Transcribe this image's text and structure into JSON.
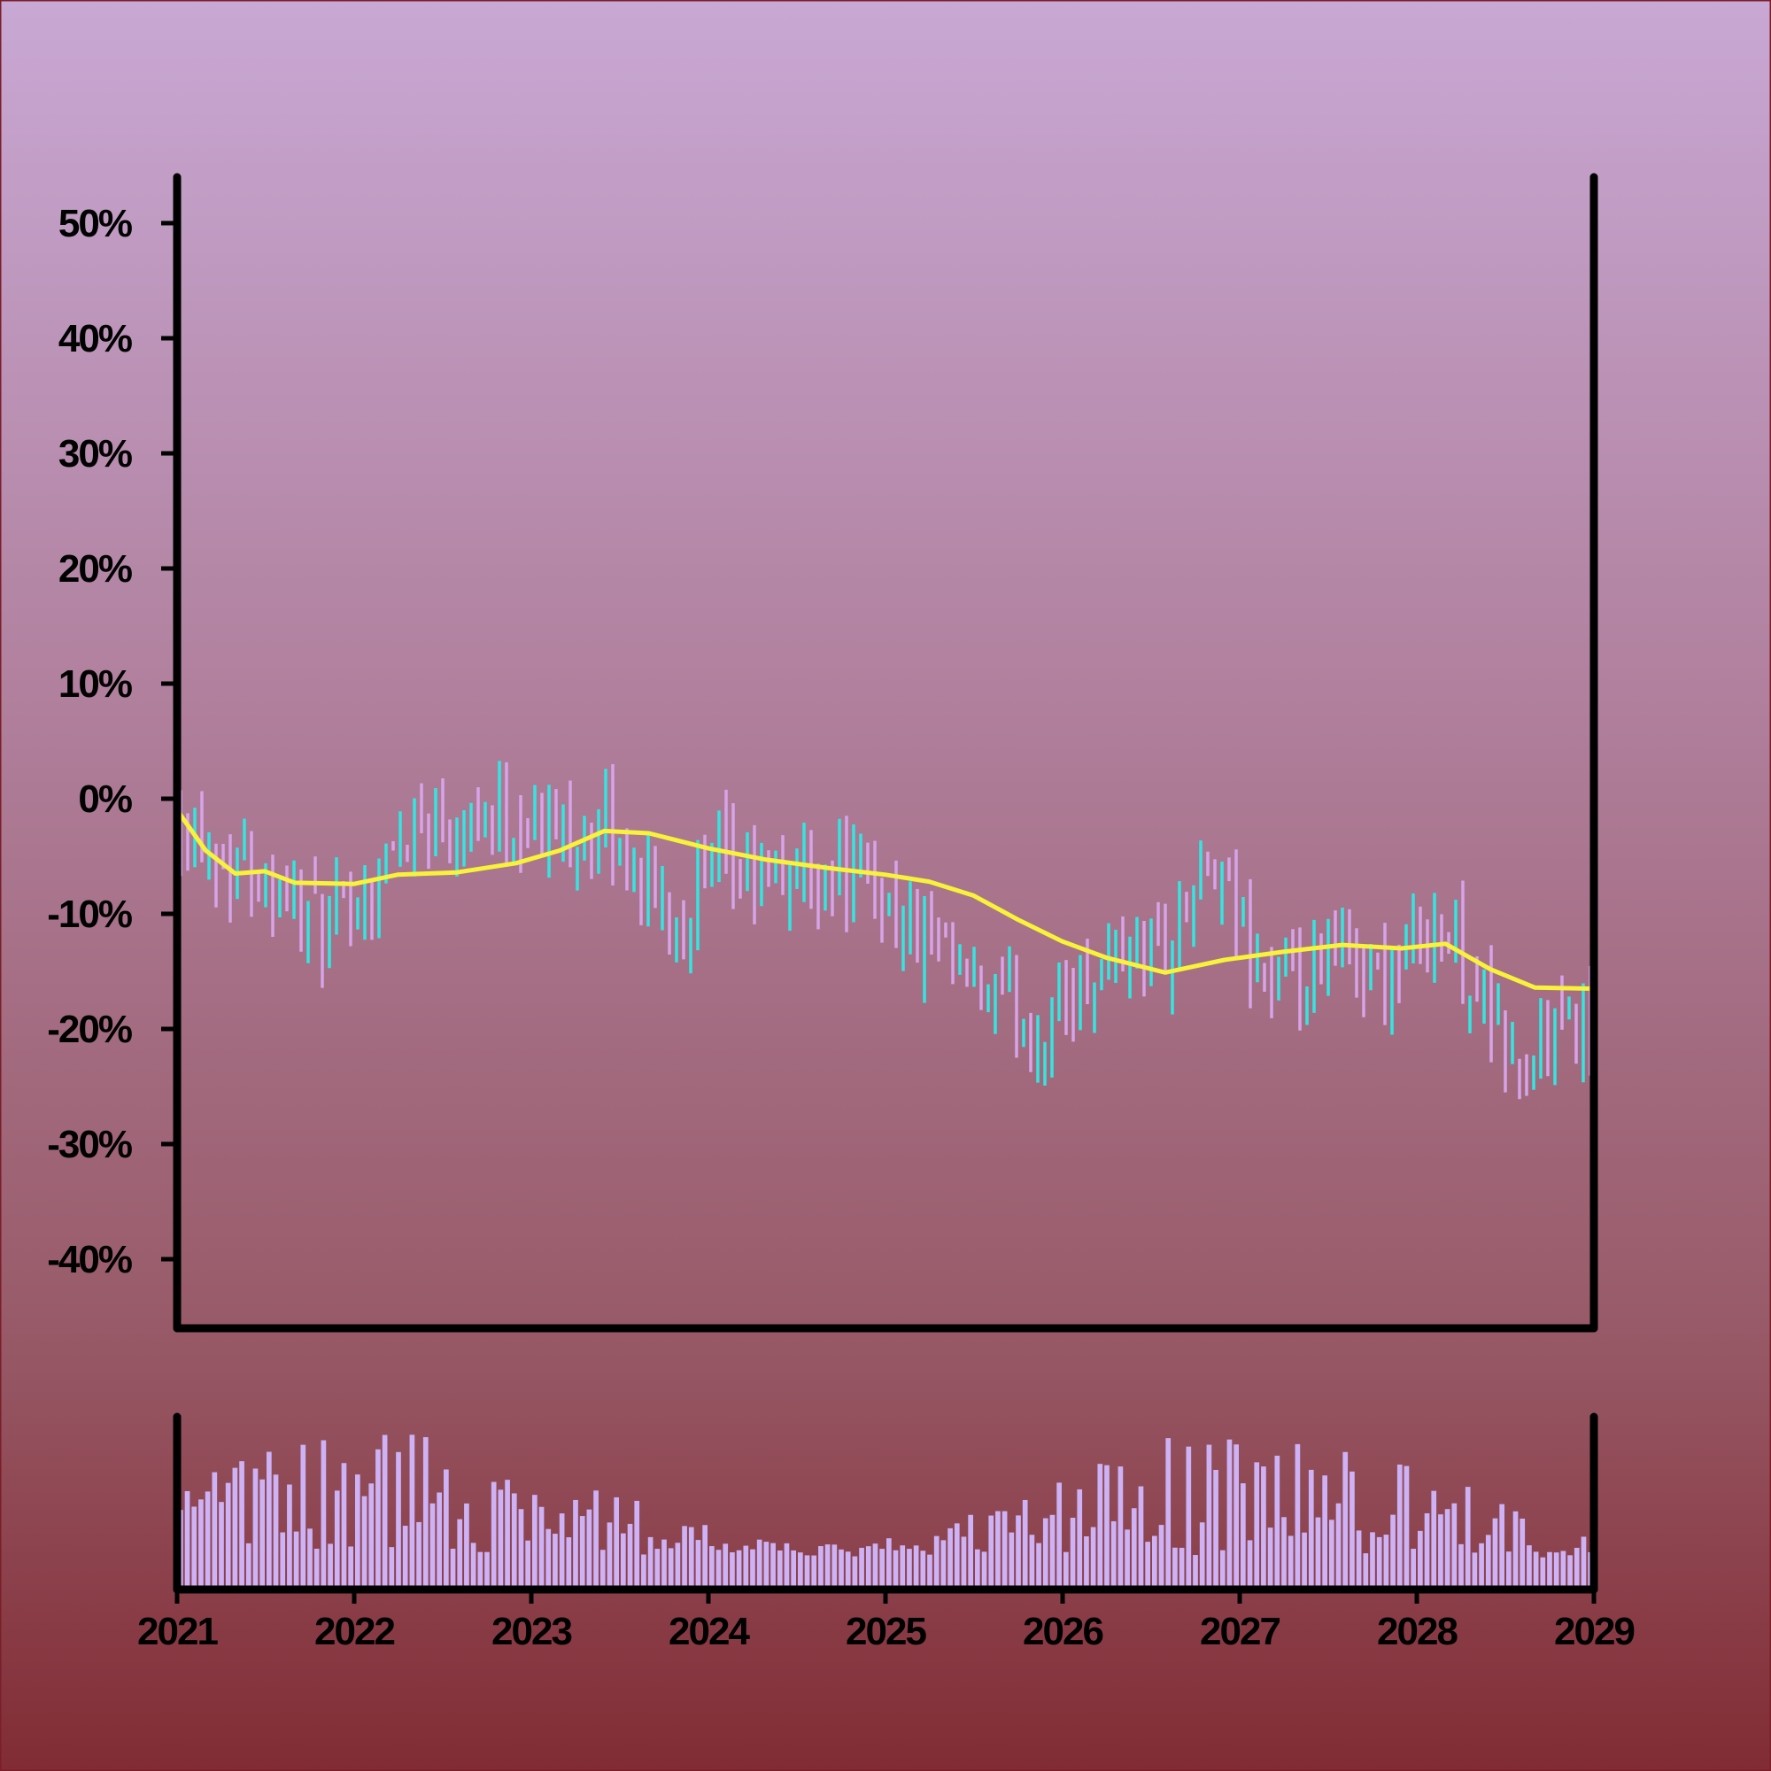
{
  "colors": {
    "bar_up": "#33e6e0",
    "bar_down": "#d6a4e8",
    "moving_average": "#f7f23a",
    "volume": "#cdb2f5",
    "axis": "#000000"
  },
  "chart_data": {
    "type": "ohlc",
    "x_range": [
      "2021-01-01",
      "2029-01-01"
    ],
    "x_tick_labels": [
      "2021",
      "2022",
      "2023",
      "2024",
      "2025",
      "2026",
      "2027",
      "2028",
      "2029"
    ],
    "y_range": [
      -46,
      54
    ],
    "y_unit": "%",
    "y_tick_labels": [
      "50%",
      "40%",
      "30%",
      "20%",
      "10%",
      "0%",
      "-10%",
      "-20%",
      "-30%",
      "-40%"
    ],
    "grid": false,
    "legend": "none",
    "series": [
      {
        "kind": "ohlc",
        "close_anchor_points": [
          [
            "2021-01-01",
            -1
          ],
          [
            "2021-04-01",
            -5
          ],
          [
            "2021-08-01",
            -7
          ],
          [
            "2021-11-01",
            -12
          ],
          [
            "2022-02-01",
            -8
          ],
          [
            "2022-05-01",
            -2
          ],
          [
            "2022-09-01",
            -1
          ],
          [
            "2022-12-01",
            -2
          ],
          [
            "2023-03-01",
            -3
          ],
          [
            "2023-06-01",
            -3
          ],
          [
            "2023-09-01",
            -8
          ],
          [
            "2023-11-01",
            -10
          ],
          [
            "2024-02-01",
            -6
          ],
          [
            "2024-05-01",
            -7
          ],
          [
            "2024-09-01",
            -6
          ],
          [
            "2024-12-01",
            -7
          ],
          [
            "2025-03-01",
            -12
          ],
          [
            "2025-06-01",
            -16
          ],
          [
            "2025-09-01",
            -18
          ],
          [
            "2025-11-15",
            -21
          ],
          [
            "2026-02-01",
            -16
          ],
          [
            "2026-05-01",
            -13
          ],
          [
            "2026-08-01",
            -13
          ],
          [
            "2026-11-01",
            -6
          ],
          [
            "2027-02-01",
            -14
          ],
          [
            "2027-05-01",
            -18
          ],
          [
            "2027-08-01",
            -13
          ],
          [
            "2027-11-01",
            -16
          ],
          [
            "2028-02-01",
            -10
          ],
          [
            "2028-05-01",
            -16
          ],
          [
            "2028-08-01",
            -24
          ],
          [
            "2028-10-15",
            -20
          ],
          [
            "2029-01-01",
            -20
          ]
        ]
      },
      {
        "kind": "moving_average",
        "points": [
          [
            "2021-01-01",
            -1
          ],
          [
            "2021-03-01",
            -4.5
          ],
          [
            "2021-05-01",
            -6.5
          ],
          [
            "2021-07-01",
            -6.3
          ],
          [
            "2021-09-01",
            -7.3
          ],
          [
            "2022-01-01",
            -7.4
          ],
          [
            "2022-04-01",
            -6.6
          ],
          [
            "2022-08-01",
            -6.4
          ],
          [
            "2022-12-01",
            -5.6
          ],
          [
            "2023-03-01",
            -4.5
          ],
          [
            "2023-06-01",
            -2.8
          ],
          [
            "2023-09-01",
            -3
          ],
          [
            "2024-01-01",
            -4.3
          ],
          [
            "2024-05-01",
            -5.3
          ],
          [
            "2024-09-01",
            -6
          ],
          [
            "2025-01-01",
            -6.6
          ],
          [
            "2025-04-01",
            -7.2
          ],
          [
            "2025-07-01",
            -8.4
          ],
          [
            "2025-10-01",
            -10.5
          ],
          [
            "2026-01-01",
            -12.4
          ],
          [
            "2026-04-01",
            -13.8
          ],
          [
            "2026-08-01",
            -15.1
          ],
          [
            "2026-12-01",
            -14
          ],
          [
            "2027-04-01",
            -13.3
          ],
          [
            "2027-08-01",
            -12.7
          ],
          [
            "2027-12-01",
            -13
          ],
          [
            "2028-03-01",
            -12.6
          ],
          [
            "2028-06-01",
            -14.8
          ],
          [
            "2028-09-01",
            -16.4
          ],
          [
            "2029-01-01",
            -16.5
          ]
        ]
      }
    ],
    "volume": {
      "bars_per_year": 26,
      "relative_level_range": [
        0.05,
        0.95
      ]
    }
  }
}
